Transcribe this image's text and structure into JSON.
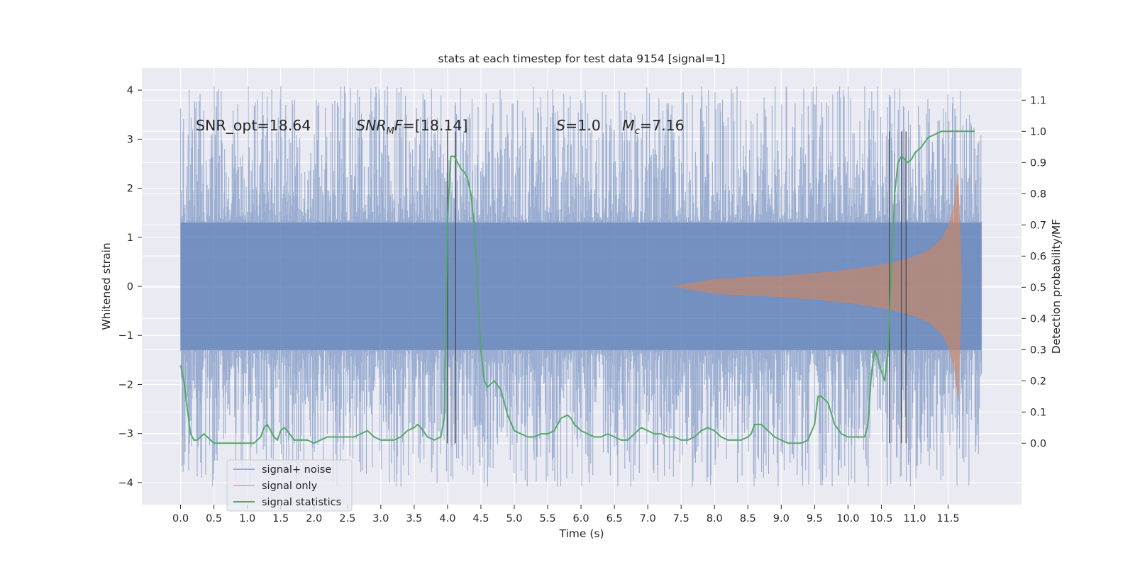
{
  "chart_data": {
    "type": "line",
    "title": "stats at each timestep for test data 9154 [signal=1]",
    "xlabel": "Time (s)",
    "ylabel": "Whitened strain",
    "ylabel_right": "Detection probability/MF",
    "xlim": [
      -0.58,
      12.6
    ],
    "ylim": [
      -4.45,
      4.45
    ],
    "ylim_right": [
      -0.197,
      1.203
    ],
    "xticks": [
      "0.0",
      "0.5",
      "1.0",
      "1.5",
      "2.0",
      "2.5",
      "3.0",
      "3.5",
      "4.0",
      "4.5",
      "5.0",
      "5.5",
      "6.0",
      "6.5",
      "7.0",
      "7.5",
      "8.0",
      "8.5",
      "9.0",
      "9.5",
      "10.0",
      "10.5",
      "11.0",
      "11.5"
    ],
    "yticks": [
      "4",
      "3",
      "2",
      "1",
      "0",
      "−1",
      "−2",
      "−3",
      "−4"
    ],
    "yticks_right": [
      "1.1",
      "1.0",
      "0.9",
      "0.8",
      "0.7",
      "0.6",
      "0.5",
      "0.4",
      "0.3",
      "0.2",
      "0.1",
      "0.0"
    ],
    "grid": true,
    "legend_position": "lower-left",
    "annotations": {
      "snr_opt": "SNR_opt=18.64",
      "snr_mf_pre": "SNR",
      "snr_mf_sub": "M",
      "snr_mf_post": "F=[18.14]",
      "s_sym": "S",
      "s_val": "=1.0",
      "mc_sym": "M",
      "mc_sub": "c",
      "mc_val": "=7.16"
    },
    "vlines_time": [
      4.0,
      4.12,
      10.62,
      10.8,
      10.87
    ],
    "series": [
      {
        "name": "signal+ noise",
        "color": "#4c72b0",
        "description": "whitened strain noise band, roughly ±1.3 dense with spikes up to about ±4 over 0.0–12.0 s",
        "core_amplitude": 1.3,
        "peak_max": 4.08,
        "peak_min": -4.08,
        "x_range": [
          0.0,
          12.0
        ]
      },
      {
        "name": "signal only",
        "color": "#dd8452",
        "description": "chirp signal, amplitude growing from ~7.4 s to ~2.3 at 11.65 s then ending",
        "envelope": [
          [
            7.4,
            0.0
          ],
          [
            8.0,
            0.14
          ],
          [
            8.5,
            0.18
          ],
          [
            9.0,
            0.21
          ],
          [
            9.5,
            0.26
          ],
          [
            10.0,
            0.33
          ],
          [
            10.5,
            0.43
          ],
          [
            10.8,
            0.52
          ],
          [
            11.0,
            0.6
          ],
          [
            11.2,
            0.72
          ],
          [
            11.4,
            0.95
          ],
          [
            11.5,
            1.2
          ],
          [
            11.6,
            1.7
          ],
          [
            11.65,
            2.3
          ],
          [
            11.7,
            0.0
          ]
        ]
      },
      {
        "name": "signal statistics",
        "color": "#55a868",
        "axis": "right",
        "x": [
          0.0,
          0.05,
          0.1,
          0.15,
          0.2,
          0.25,
          0.3,
          0.35,
          0.4,
          0.45,
          0.5,
          0.6,
          0.7,
          0.8,
          0.9,
          1.0,
          1.1,
          1.2,
          1.25,
          1.3,
          1.35,
          1.4,
          1.45,
          1.5,
          1.55,
          1.6,
          1.7,
          1.8,
          1.9,
          2.0,
          2.1,
          2.2,
          2.3,
          2.4,
          2.5,
          2.6,
          2.7,
          2.8,
          2.9,
          3.0,
          3.1,
          3.2,
          3.3,
          3.4,
          3.5,
          3.55,
          3.6,
          3.7,
          3.8,
          3.9,
          3.95,
          4.0,
          4.05,
          4.1,
          4.15,
          4.2,
          4.25,
          4.3,
          4.35,
          4.4,
          4.45,
          4.5,
          4.55,
          4.6,
          4.65,
          4.7,
          4.8,
          4.9,
          5.0,
          5.1,
          5.2,
          5.3,
          5.4,
          5.5,
          5.6,
          5.7,
          5.8,
          5.85,
          5.9,
          6.0,
          6.1,
          6.2,
          6.3,
          6.4,
          6.5,
          6.6,
          6.7,
          6.8,
          6.9,
          7.0,
          7.1,
          7.2,
          7.3,
          7.4,
          7.5,
          7.6,
          7.7,
          7.8,
          7.9,
          8.0,
          8.1,
          8.2,
          8.3,
          8.4,
          8.5,
          8.55,
          8.6,
          8.7,
          8.8,
          8.9,
          9.0,
          9.1,
          9.2,
          9.3,
          9.4,
          9.5,
          9.55,
          9.6,
          9.7,
          9.8,
          9.9,
          10.0,
          10.1,
          10.2,
          10.25,
          10.3,
          10.35,
          10.4,
          10.45,
          10.5,
          10.55,
          10.6,
          10.65,
          10.7,
          10.75,
          10.8,
          10.85,
          10.9,
          10.95,
          11.0,
          11.1,
          11.2,
          11.3,
          11.4,
          11.5,
          11.6,
          11.7,
          11.8,
          11.9
        ],
        "values": [
          0.25,
          0.2,
          0.11,
          0.03,
          0.01,
          0.01,
          0.02,
          0.03,
          0.02,
          0.01,
          0.0,
          0.0,
          0.0,
          0.0,
          0.0,
          0.0,
          0.0,
          0.02,
          0.05,
          0.06,
          0.04,
          0.02,
          0.01,
          0.04,
          0.05,
          0.04,
          0.01,
          0.01,
          0.01,
          0.0,
          0.01,
          0.02,
          0.02,
          0.02,
          0.02,
          0.02,
          0.03,
          0.04,
          0.02,
          0.01,
          0.01,
          0.01,
          0.02,
          0.04,
          0.05,
          0.06,
          0.05,
          0.02,
          0.01,
          0.02,
          0.08,
          0.72,
          0.92,
          0.92,
          0.9,
          0.88,
          0.87,
          0.85,
          0.8,
          0.7,
          0.5,
          0.3,
          0.2,
          0.18,
          0.19,
          0.2,
          0.17,
          0.09,
          0.04,
          0.03,
          0.02,
          0.02,
          0.03,
          0.03,
          0.04,
          0.08,
          0.09,
          0.08,
          0.06,
          0.04,
          0.03,
          0.02,
          0.02,
          0.03,
          0.02,
          0.01,
          0.01,
          0.03,
          0.05,
          0.04,
          0.03,
          0.03,
          0.02,
          0.02,
          0.01,
          0.01,
          0.02,
          0.04,
          0.05,
          0.04,
          0.02,
          0.01,
          0.01,
          0.01,
          0.02,
          0.03,
          0.06,
          0.06,
          0.04,
          0.02,
          0.01,
          0.0,
          0.0,
          0.0,
          0.01,
          0.06,
          0.15,
          0.15,
          0.13,
          0.06,
          0.03,
          0.02,
          0.02,
          0.02,
          0.02,
          0.06,
          0.22,
          0.3,
          0.27,
          0.23,
          0.2,
          0.3,
          0.55,
          0.8,
          0.9,
          0.92,
          0.91,
          0.9,
          0.91,
          0.93,
          0.95,
          0.98,
          0.99,
          1.0,
          1.0,
          1.0,
          1.0,
          1.0,
          1.0
        ]
      }
    ]
  }
}
